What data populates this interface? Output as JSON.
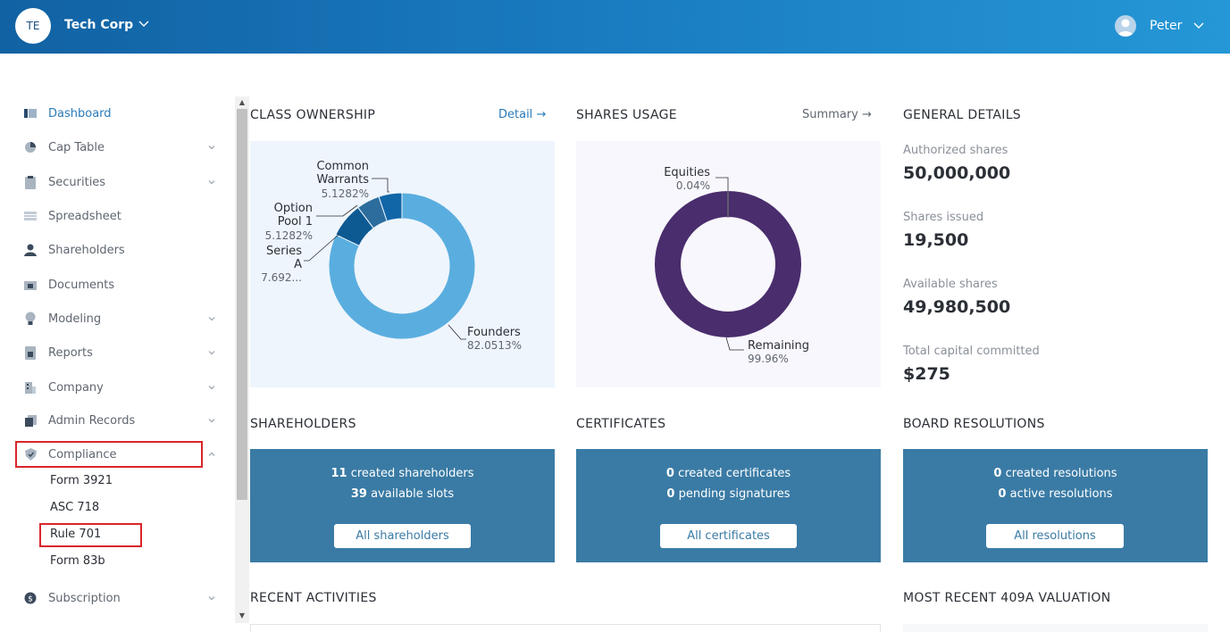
{
  "header": {
    "org_initials": "TE",
    "org_name": "Tech Corp",
    "user_name": "Peter"
  },
  "sidebar": {
    "items": [
      {
        "label": "Dashboard",
        "icon": "dashboard-icon",
        "expandable": false,
        "active": true
      },
      {
        "label": "Cap Table",
        "icon": "pie-chart-icon",
        "expandable": true
      },
      {
        "label": "Securities",
        "icon": "clipboard-icon",
        "expandable": true
      },
      {
        "label": "Spreadsheet",
        "icon": "spreadsheet-icon",
        "expandable": false
      },
      {
        "label": "Shareholders",
        "icon": "person-icon",
        "expandable": false
      },
      {
        "label": "Documents",
        "icon": "folder-icon",
        "expandable": false
      },
      {
        "label": "Modeling",
        "icon": "lightbulb-icon",
        "expandable": true
      },
      {
        "label": "Reports",
        "icon": "report-icon",
        "expandable": true
      },
      {
        "label": "Company",
        "icon": "building-icon",
        "expandable": true
      },
      {
        "label": "Admin Records",
        "icon": "records-icon",
        "expandable": true
      },
      {
        "label": "Compliance",
        "icon": "shield-icon",
        "expandable": true,
        "expanded": true
      },
      {
        "label": "Subscription",
        "icon": "dollar-icon",
        "expandable": true
      }
    ],
    "compliance_sub": [
      "Form 3921",
      "ASC 718",
      "Rule 701",
      "Form 83b"
    ]
  },
  "class_ownership": {
    "title": "CLASS OWNERSHIP",
    "link": "Detail",
    "chart_data": {
      "type": "pie",
      "variant": "donut",
      "slices": [
        {
          "name": "Founders",
          "value": 82.0513,
          "label": "82.0513%",
          "color": "#5aaedf"
        },
        {
          "name": "Series A",
          "value": 7.6923,
          "label": "7.692...",
          "color": "#0d5a93"
        },
        {
          "name": "Option Pool 1",
          "value": 5.1282,
          "label": "5.1282%",
          "color": "#2c6d9e"
        },
        {
          "name": "Common Warrants",
          "value": 5.1282,
          "label": "5.1282%",
          "color": "#1166a8"
        }
      ],
      "label_lines": {
        "common": [
          "Common",
          "Warrants"
        ],
        "option": [
          "Option",
          "Pool 1"
        ],
        "series": [
          "Series",
          "A"
        ]
      }
    }
  },
  "shares_usage": {
    "title": "SHARES USAGE",
    "link": "Summary",
    "chart_data": {
      "type": "pie",
      "variant": "donut",
      "slices": [
        {
          "name": "Equities",
          "value": 0.04,
          "label": "0.04%",
          "color": "#ffffff"
        },
        {
          "name": "Remaining",
          "value": 99.96,
          "label": "99.96%",
          "color": "#4a2d6c"
        }
      ]
    }
  },
  "general_details": {
    "title": "GENERAL DETAILS",
    "rows": [
      {
        "label": "Authorized shares",
        "value": "50,000,000"
      },
      {
        "label": "Shares issued",
        "value": "19,500"
      },
      {
        "label": "Available shares",
        "value": "49,980,500"
      },
      {
        "label": "Total capital committed",
        "value": "$275"
      }
    ]
  },
  "cards": [
    {
      "title": "SHAREHOLDERS",
      "n1": "11",
      "t1": "created shareholders",
      "n2": "39",
      "t2": "available slots",
      "button": "All shareholders"
    },
    {
      "title": "CERTIFICATES",
      "n1": "0",
      "t1": "created certificates",
      "n2": "0",
      "t2": "pending signatures",
      "button": "All certificates"
    },
    {
      "title": "BOARD RESOLUTIONS",
      "n1": "0",
      "t1": "created resolutions",
      "n2": "0",
      "t2": "active resolutions",
      "button": "All resolutions"
    }
  ],
  "recent_activities_title": "RECENT ACTIVITIES",
  "valuation_title": "MOST RECENT 409A VALUATION",
  "colors": {
    "accent": "#2a7ab8",
    "card": "#3a7ba5",
    "highlight": "#d9262c"
  }
}
